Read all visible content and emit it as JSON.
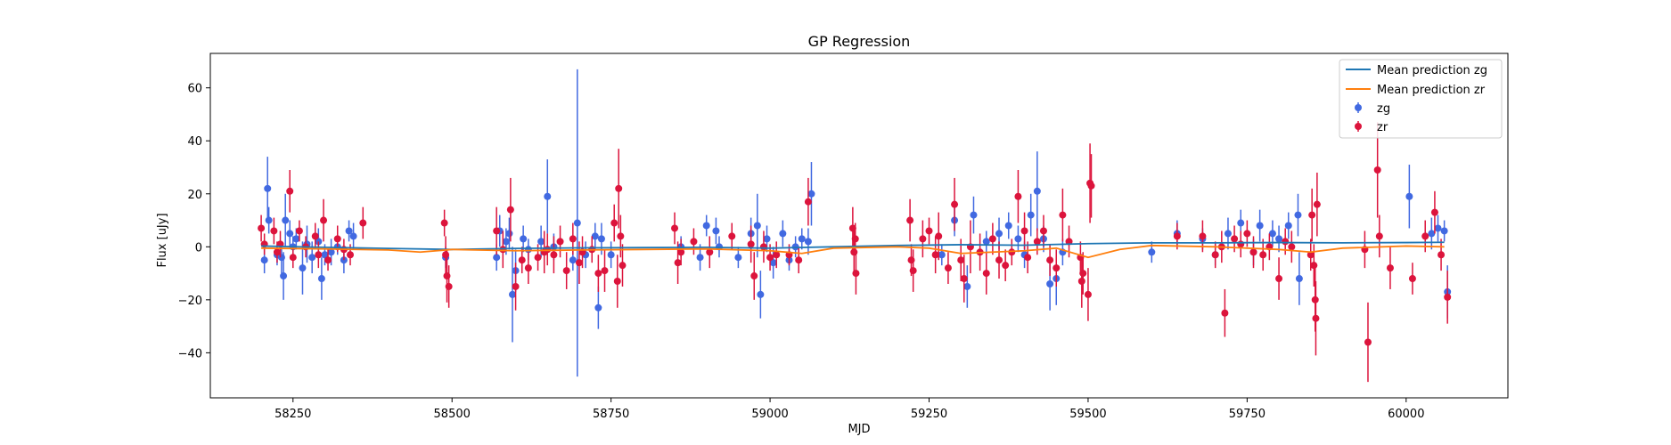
{
  "chart_data": {
    "type": "scatter",
    "title": "GP Regression",
    "xlabel": "MJD",
    "ylabel": "Flux [uJy]",
    "xlim": [
      58120,
      60160
    ],
    "ylim": [
      -57,
      73
    ],
    "xticks": [
      58250,
      58500,
      58750,
      59000,
      59250,
      59500,
      59750,
      60000
    ],
    "yticks": [
      -40,
      -20,
      0,
      20,
      40,
      60
    ],
    "legend_position": "top-right",
    "grid": false,
    "colors": {
      "zg_points": "#4169e1",
      "zr_points": "#dc143c",
      "zg_line": "#1f77b4",
      "zr_line": "#ff7f0e"
    },
    "mean_lines": [
      {
        "name": "Mean prediction zg",
        "x": [
          58200,
          58300,
          58400,
          58500,
          58600,
          58700,
          58800,
          58900,
          59000,
          59100,
          59200,
          59300,
          59400,
          59500,
          59600,
          59700,
          59800,
          59900,
          60000,
          60060
        ],
        "y": [
          0.3,
          -0.2,
          -0.6,
          -1.0,
          -0.6,
          -0.4,
          -0.3,
          -0.2,
          -0.5,
          0.0,
          0.5,
          0.8,
          0.6,
          1.2,
          1.5,
          1.5,
          1.6,
          1.5,
          1.6,
          1.7
        ]
      },
      {
        "name": "Mean prediction zr",
        "x": [
          58200,
          58300,
          58400,
          58450,
          58500,
          58600,
          58700,
          58800,
          58900,
          59000,
          59050,
          59100,
          59200,
          59250,
          59300,
          59400,
          59450,
          59500,
          59550,
          59600,
          59700,
          59800,
          59850,
          59900,
          60000,
          60060
        ],
        "y": [
          -0.5,
          -0.8,
          -1.2,
          -2.0,
          -1.0,
          -1.5,
          -1.2,
          -1.0,
          -0.8,
          -1.5,
          -2.5,
          -0.5,
          0.0,
          -0.5,
          -2.5,
          -1.5,
          -0.5,
          -4.0,
          -1.0,
          0.5,
          0.0,
          -1.0,
          -2.0,
          -0.5,
          0.3,
          0.0
        ]
      }
    ],
    "series": [
      {
        "name": "zg",
        "points": [
          [
            58205,
            -5,
            5
          ],
          [
            58210,
            22,
            12
          ],
          [
            58212,
            10,
            5
          ],
          [
            58225,
            -3,
            4
          ],
          [
            58232,
            -4,
            6
          ],
          [
            58235,
            -11,
            9
          ],
          [
            58238,
            10,
            10
          ],
          [
            58245,
            5,
            5
          ],
          [
            58250,
            0,
            4
          ],
          [
            58255,
            3,
            4
          ],
          [
            58265,
            -8,
            10
          ],
          [
            58272,
            1,
            7
          ],
          [
            58280,
            -4,
            6
          ],
          [
            58290,
            2,
            5
          ],
          [
            58295,
            -12,
            8
          ],
          [
            58300,
            -3,
            4
          ],
          [
            58310,
            -2,
            5
          ],
          [
            58320,
            0,
            3
          ],
          [
            58330,
            -5,
            5
          ],
          [
            58338,
            6,
            4
          ],
          [
            58345,
            4,
            5
          ],
          [
            58490,
            -4,
            4
          ],
          [
            58570,
            -4,
            5
          ],
          [
            58575,
            6,
            6
          ],
          [
            58585,
            2,
            5
          ],
          [
            58590,
            5,
            6
          ],
          [
            58595,
            -18,
            18
          ],
          [
            58600,
            -9,
            8
          ],
          [
            58612,
            3,
            5
          ],
          [
            58620,
            -1,
            4
          ],
          [
            58640,
            2,
            6
          ],
          [
            58650,
            19,
            14
          ],
          [
            58660,
            0,
            5
          ],
          [
            58690,
            -5,
            4
          ],
          [
            58697,
            9,
            58
          ],
          [
            58710,
            -3,
            5
          ],
          [
            58725,
            4,
            5
          ],
          [
            58730,
            -23,
            8
          ],
          [
            58735,
            3,
            6
          ],
          [
            58750,
            -3,
            5
          ],
          [
            58860,
            0,
            4
          ],
          [
            58890,
            -4,
            5
          ],
          [
            58900,
            8,
            4
          ],
          [
            58915,
            6,
            5
          ],
          [
            58920,
            0,
            4
          ],
          [
            58950,
            -4,
            4
          ],
          [
            58970,
            5,
            6
          ],
          [
            58980,
            8,
            12
          ],
          [
            58985,
            -18,
            9
          ],
          [
            58995,
            3,
            5
          ],
          [
            59005,
            -6,
            6
          ],
          [
            59020,
            5,
            5
          ],
          [
            59030,
            -5,
            4
          ],
          [
            59040,
            0,
            4
          ],
          [
            59050,
            3,
            4
          ],
          [
            59060,
            2,
            5
          ],
          [
            59065,
            20,
            12
          ],
          [
            59270,
            -3,
            4
          ],
          [
            59290,
            10,
            6
          ],
          [
            59310,
            -15,
            8
          ],
          [
            59320,
            12,
            7
          ],
          [
            59340,
            2,
            4
          ],
          [
            59360,
            5,
            6
          ],
          [
            59375,
            8,
            5
          ],
          [
            59390,
            3,
            5
          ],
          [
            59400,
            -3,
            5
          ],
          [
            59410,
            12,
            8
          ],
          [
            59420,
            21,
            15
          ],
          [
            59430,
            3,
            5
          ],
          [
            59440,
            -14,
            10
          ],
          [
            59450,
            -12,
            10
          ],
          [
            59460,
            -2,
            5
          ],
          [
            59600,
            -2,
            4
          ],
          [
            59640,
            5,
            5
          ],
          [
            59680,
            3,
            4
          ],
          [
            59700,
            -3,
            4
          ],
          [
            59720,
            5,
            6
          ],
          [
            59740,
            9,
            5
          ],
          [
            59760,
            -2,
            5
          ],
          [
            59770,
            8,
            6
          ],
          [
            59790,
            5,
            5
          ],
          [
            59800,
            3,
            5
          ],
          [
            59815,
            8,
            5
          ],
          [
            59830,
            12,
            8
          ],
          [
            59832,
            -12,
            10
          ],
          [
            60005,
            19,
            12
          ],
          [
            60040,
            5,
            6
          ],
          [
            60050,
            7,
            5
          ],
          [
            60060,
            6,
            4
          ],
          [
            60065,
            -17,
            10
          ]
        ]
      },
      {
        "name": "zr",
        "points": [
          [
            58200,
            7,
            5
          ],
          [
            58205,
            1,
            4
          ],
          [
            58220,
            6,
            5
          ],
          [
            58225,
            -2,
            4
          ],
          [
            58230,
            1,
            5
          ],
          [
            58245,
            21,
            8
          ],
          [
            58250,
            -4,
            4
          ],
          [
            58260,
            6,
            4
          ],
          [
            58270,
            0,
            4
          ],
          [
            58285,
            4,
            5
          ],
          [
            58290,
            -3,
            5
          ],
          [
            58298,
            10,
            8
          ],
          [
            58305,
            -5,
            4
          ],
          [
            58320,
            3,
            5
          ],
          [
            58330,
            -1,
            4
          ],
          [
            58340,
            -3,
            4
          ],
          [
            58360,
            9,
            6
          ],
          [
            58488,
            9,
            5
          ],
          [
            58490,
            -3,
            7
          ],
          [
            58492,
            -11,
            10
          ],
          [
            58495,
            -15,
            8
          ],
          [
            58570,
            6,
            9
          ],
          [
            58580,
            -1,
            7
          ],
          [
            58592,
            14,
            12
          ],
          [
            58600,
            -15,
            9
          ],
          [
            58610,
            -5,
            5
          ],
          [
            58620,
            -8,
            6
          ],
          [
            58635,
            -4,
            5
          ],
          [
            58645,
            -2,
            8
          ],
          [
            58650,
            -1,
            6
          ],
          [
            58660,
            -3,
            7
          ],
          [
            58670,
            2,
            6
          ],
          [
            58680,
            -9,
            7
          ],
          [
            58690,
            3,
            6
          ],
          [
            58700,
            -6,
            8
          ],
          [
            58705,
            -2,
            6
          ],
          [
            58720,
            -1,
            5
          ],
          [
            58730,
            -10,
            7
          ],
          [
            58740,
            -9,
            8
          ],
          [
            58755,
            9,
            7
          ],
          [
            58760,
            -13,
            10
          ],
          [
            58762,
            22,
            15
          ],
          [
            58765,
            4,
            8
          ],
          [
            58768,
            -7,
            8
          ],
          [
            58850,
            7,
            6
          ],
          [
            58855,
            -6,
            8
          ],
          [
            58860,
            -2,
            5
          ],
          [
            58880,
            2,
            5
          ],
          [
            58905,
            -2,
            6
          ],
          [
            58940,
            4,
            5
          ],
          [
            58970,
            1,
            7
          ],
          [
            58975,
            -11,
            9
          ],
          [
            58990,
            0,
            6
          ],
          [
            59000,
            -4,
            5
          ],
          [
            59010,
            -3,
            5
          ],
          [
            59030,
            -3,
            4
          ],
          [
            59045,
            -5,
            5
          ],
          [
            59060,
            17,
            9
          ],
          [
            59130,
            7,
            8
          ],
          [
            59132,
            -2,
            9
          ],
          [
            59134,
            3,
            6
          ],
          [
            59135,
            -10,
            8
          ],
          [
            59220,
            10,
            8
          ],
          [
            59222,
            -5,
            6
          ],
          [
            59225,
            -9,
            8
          ],
          [
            59240,
            3,
            7
          ],
          [
            59250,
            6,
            5
          ],
          [
            59260,
            -3,
            7
          ],
          [
            59265,
            4,
            9
          ],
          [
            59280,
            -8,
            6
          ],
          [
            59290,
            16,
            10
          ],
          [
            59300,
            -5,
            8
          ],
          [
            59305,
            -12,
            9
          ],
          [
            59315,
            0,
            10
          ],
          [
            59330,
            -2,
            7
          ],
          [
            59340,
            -10,
            8
          ],
          [
            59350,
            3,
            6
          ],
          [
            59360,
            -5,
            7
          ],
          [
            59370,
            -7,
            6
          ],
          [
            59380,
            -2,
            5
          ],
          [
            59390,
            19,
            10
          ],
          [
            59400,
            6,
            7
          ],
          [
            59405,
            -4,
            6
          ],
          [
            59420,
            2,
            5
          ],
          [
            59430,
            6,
            6
          ],
          [
            59440,
            -5,
            6
          ],
          [
            59450,
            -8,
            7
          ],
          [
            59460,
            12,
            10
          ],
          [
            59470,
            2,
            6
          ],
          [
            59488,
            -4,
            6
          ],
          [
            59490,
            -13,
            10
          ],
          [
            59492,
            -10,
            8
          ],
          [
            59500,
            -18,
            10
          ],
          [
            59503,
            24,
            15
          ],
          [
            59505,
            23,
            12
          ],
          [
            59640,
            4,
            5
          ],
          [
            59680,
            4,
            6
          ],
          [
            59700,
            -3,
            5
          ],
          [
            59710,
            0,
            6
          ],
          [
            59715,
            -25,
            9
          ],
          [
            59730,
            3,
            5
          ],
          [
            59740,
            1,
            5
          ],
          [
            59750,
            5,
            5
          ],
          [
            59760,
            -2,
            6
          ],
          [
            59775,
            -3,
            6
          ],
          [
            59785,
            0,
            5
          ],
          [
            59800,
            -12,
            8
          ],
          [
            59810,
            2,
            5
          ],
          [
            59820,
            0,
            6
          ],
          [
            59850,
            -3,
            6
          ],
          [
            59852,
            12,
            10
          ],
          [
            59855,
            -7,
            8
          ],
          [
            59857,
            -20,
            12
          ],
          [
            59858,
            -27,
            14
          ],
          [
            59860,
            16,
            12
          ],
          [
            59935,
            -1,
            7
          ],
          [
            59940,
            -36,
            15
          ],
          [
            59955,
            29,
            18
          ],
          [
            59958,
            4,
            8
          ],
          [
            59975,
            -8,
            8
          ],
          [
            60010,
            -12,
            6
          ],
          [
            60030,
            4,
            6
          ],
          [
            60045,
            13,
            8
          ],
          [
            60055,
            -3,
            6
          ],
          [
            60065,
            -19,
            10
          ]
        ]
      }
    ]
  }
}
